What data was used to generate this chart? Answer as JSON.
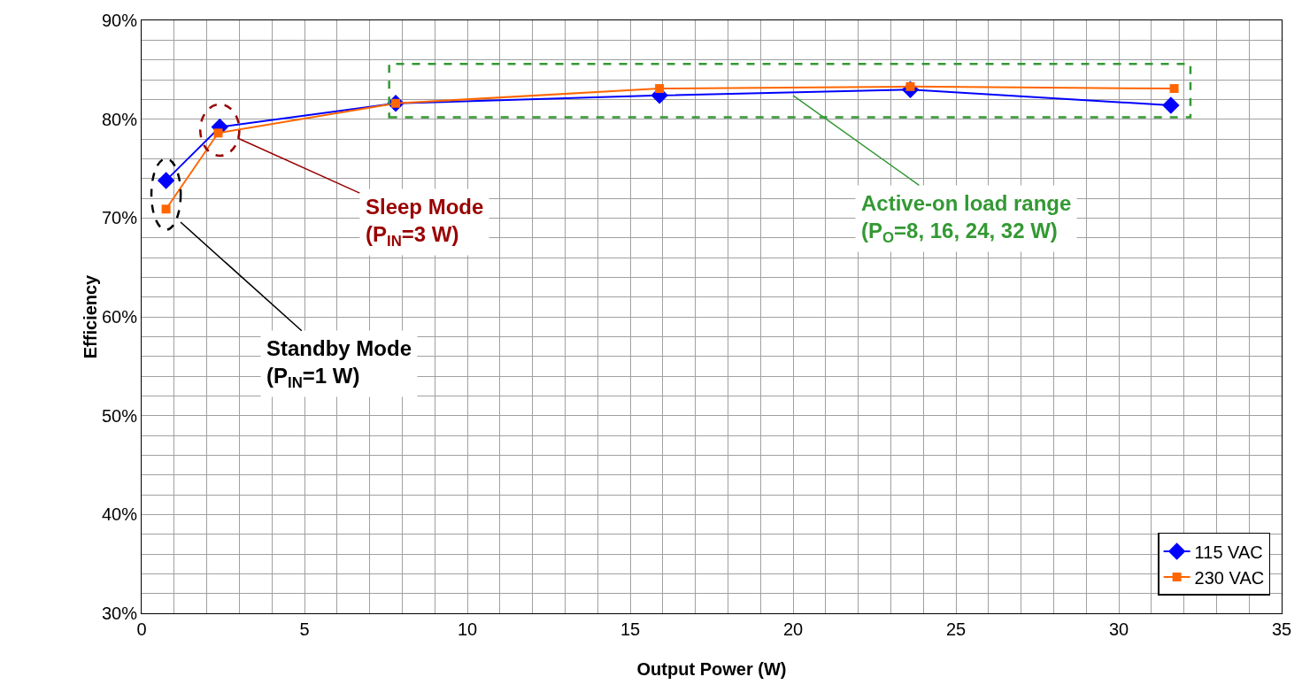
{
  "chart_data": {
    "type": "line",
    "xlabel": "Output Power (W)",
    "ylabel": "Efficiency",
    "xlim": [
      0,
      35
    ],
    "xticks": [
      0,
      {
        "value": 1,
        "label": null
      },
      {
        "value": 2,
        "label": null
      },
      {
        "value": 3,
        "label": null
      },
      {
        "value": 4,
        "label": null
      },
      5,
      {
        "value": 6,
        "label": null
      },
      {
        "value": 7,
        "label": null
      },
      {
        "value": 8,
        "label": null
      },
      {
        "value": 9,
        "label": null
      },
      10,
      {
        "value": 11,
        "label": null
      },
      {
        "value": 12,
        "label": null
      },
      {
        "value": 13,
        "label": null
      },
      {
        "value": 14,
        "label": null
      },
      15,
      {
        "value": 16,
        "label": null
      },
      {
        "value": 17,
        "label": null
      },
      {
        "value": 18,
        "label": null
      },
      {
        "value": 19,
        "label": null
      },
      20,
      {
        "value": 21,
        "label": null
      },
      {
        "value": 22,
        "label": null
      },
      {
        "value": 23,
        "label": null
      },
      {
        "value": 24,
        "label": null
      },
      25,
      {
        "value": 26,
        "label": null
      },
      {
        "value": 27,
        "label": null
      },
      {
        "value": 28,
        "label": null
      },
      {
        "value": 29,
        "label": null
      },
      30,
      {
        "value": 31,
        "label": null
      },
      {
        "value": 32,
        "label": null
      },
      {
        "value": 33,
        "label": null
      },
      {
        "value": 34,
        "label": null
      },
      35
    ],
    "ylim": [
      30,
      90
    ],
    "yticks": [
      {
        "value": 30,
        "label": "30%"
      },
      {
        "value": 32,
        "label": null
      },
      {
        "value": 34,
        "label": null
      },
      {
        "value": 36,
        "label": null
      },
      {
        "value": 38,
        "label": null
      },
      {
        "value": 40,
        "label": "40%"
      },
      {
        "value": 42,
        "label": null
      },
      {
        "value": 44,
        "label": null
      },
      {
        "value": 46,
        "label": null
      },
      {
        "value": 48,
        "label": null
      },
      {
        "value": 50,
        "label": "50%"
      },
      {
        "value": 52,
        "label": null
      },
      {
        "value": 54,
        "label": null
      },
      {
        "value": 56,
        "label": null
      },
      {
        "value": 58,
        "label": null
      },
      {
        "value": 60,
        "label": "60%"
      },
      {
        "value": 62,
        "label": null
      },
      {
        "value": 64,
        "label": null
      },
      {
        "value": 66,
        "label": null
      },
      {
        "value": 68,
        "label": null
      },
      {
        "value": 70,
        "label": "70%"
      },
      {
        "value": 72,
        "label": null
      },
      {
        "value": 74,
        "label": null
      },
      {
        "value": 76,
        "label": null
      },
      {
        "value": 78,
        "label": null
      },
      {
        "value": 80,
        "label": "80%"
      },
      {
        "value": 82,
        "label": null
      },
      {
        "value": 84,
        "label": null
      },
      {
        "value": 86,
        "label": null
      },
      {
        "value": 88,
        "label": null
      },
      {
        "value": 90,
        "label": "90%"
      }
    ],
    "grid": true,
    "legend": "bottom right",
    "line_style": "solid",
    "series": [
      {
        "name": "115 VAC",
        "color": "#0000ff",
        "marker": "diamond",
        "x": [
          0.75,
          2.4,
          7.8,
          15.9,
          23.6,
          31.6
        ],
        "values": [
          73.8,
          79.2,
          81.6,
          82.4,
          83.0,
          81.4
        ]
      },
      {
        "name": "230 VAC",
        "color": "#ff6600",
        "marker": "square",
        "x": [
          0.75,
          2.35,
          7.8,
          15.9,
          23.6,
          31.7
        ],
        "values": [
          70.9,
          78.6,
          81.6,
          83.1,
          83.3,
          83.1
        ]
      }
    ],
    "annotations": [
      {
        "text": "Standby Mode\n(P$_{IN}$=1 W)",
        "x": 0.75,
        "y": 70.9
      },
      {
        "text": "Sleep Mode\n(P$_{IN}$=3 W)",
        "x": 2.4,
        "y": 78.9
      },
      {
        "text": "Active-on load range\n(P$_{O}$=8, 16, 24, 32 W)",
        "x": 20,
        "y": 82.4
      }
    ]
  }
}
